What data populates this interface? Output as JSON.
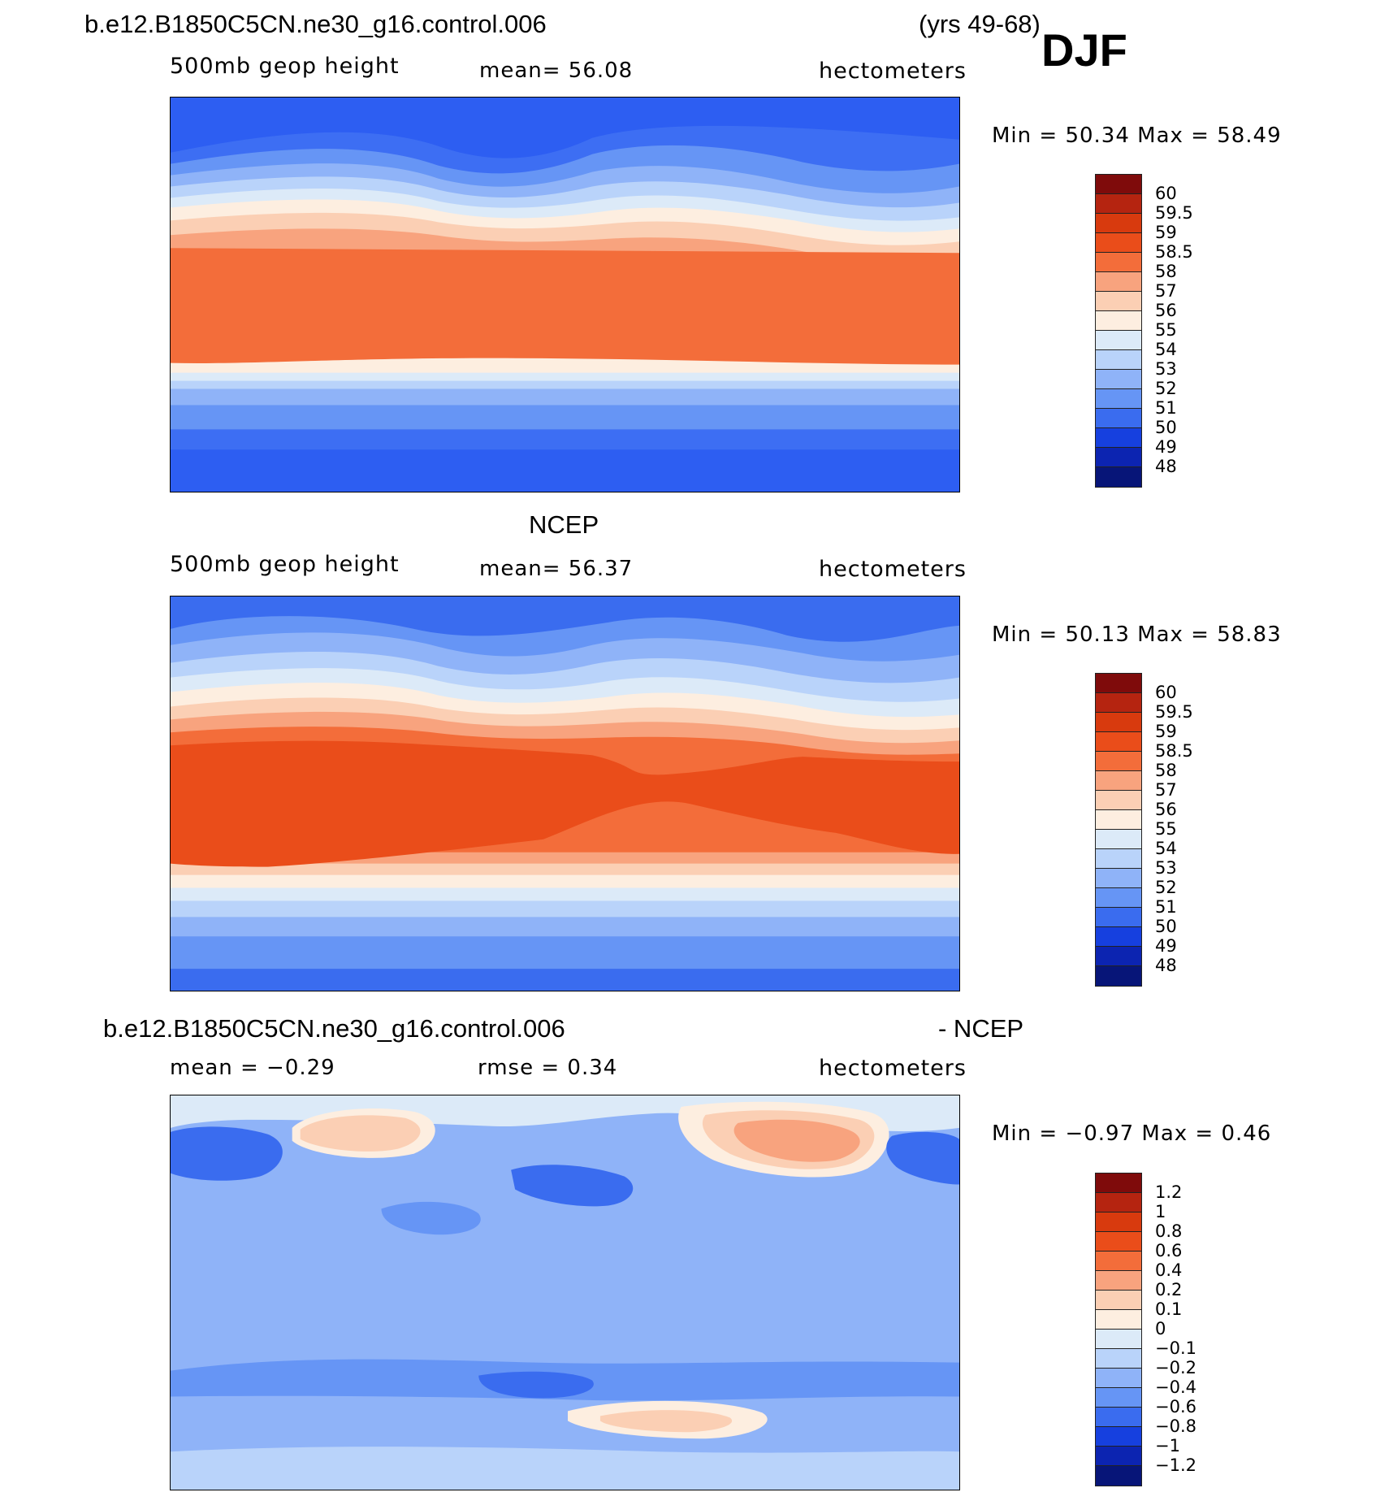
{
  "header": {
    "case_name": "b.e12.B1850C5CN.ne30_g16.control.006",
    "years": "(yrs 49-68)",
    "season": "DJF"
  },
  "panels": [
    {
      "id": "model",
      "variable": "500mb geop height",
      "mean_text": "mean=   56.08",
      "units": "hectometers",
      "minmax_text": "Min =   50.34 Max =   58.49",
      "stats": {
        "mean": 56.08,
        "min": 50.34,
        "max": 58.49
      }
    },
    {
      "id": "obs",
      "title": "NCEP",
      "variable": "500mb geop height",
      "mean_text": "mean=   56.37",
      "units": "hectometers",
      "minmax_text": "Min =   50.13 Max =   58.83",
      "stats": {
        "mean": 56.37,
        "min": 50.13,
        "max": 58.83
      }
    },
    {
      "id": "diff",
      "title_left": "b.e12.B1850C5CN.ne30_g16.control.006",
      "title_right": "- NCEP",
      "mean_text": "mean =   −0.29",
      "rmse_text": "rmse =    0.34",
      "units": "hectometers",
      "minmax_text": "Min =   −0.97 Max =    0.46",
      "stats": {
        "mean": -0.29,
        "rmse": 0.34,
        "min": -0.97,
        "max": 0.46
      }
    }
  ],
  "colorbars": {
    "height": {
      "labels": [
        "60",
        "59.5",
        "59",
        "58.5",
        "58",
        "57",
        "56",
        "55",
        "54",
        "53",
        "52",
        "51",
        "50",
        "49",
        "48"
      ],
      "colors": [
        "#7f0b0b",
        "#b52410",
        "#d83a0e",
        "#ea4d1a",
        "#f36d3a",
        "#f8a37e",
        "#fbcfb4",
        "#fdeee0",
        "#dceaf8",
        "#b9d3fa",
        "#8fb3f8",
        "#6695f5",
        "#3a6cef",
        "#1640df",
        "#0c24b1",
        "#071578"
      ]
    },
    "diff": {
      "labels": [
        "1.2",
        "1",
        "0.8",
        "0.6",
        "0.4",
        "0.2",
        "0.1",
        "0",
        "−0.1",
        "−0.2",
        "−0.4",
        "−0.6",
        "−0.8",
        "−1",
        "−1.2"
      ],
      "colors": [
        "#7f0b0b",
        "#b52410",
        "#d83a0e",
        "#ea4d1a",
        "#f36d3a",
        "#f8a37e",
        "#fbcfb4",
        "#fdeee0",
        "#dceaf8",
        "#b9d3fa",
        "#8fb3f8",
        "#6695f5",
        "#3a6cef",
        "#1640df",
        "#0c24b1",
        "#071578"
      ]
    }
  }
}
